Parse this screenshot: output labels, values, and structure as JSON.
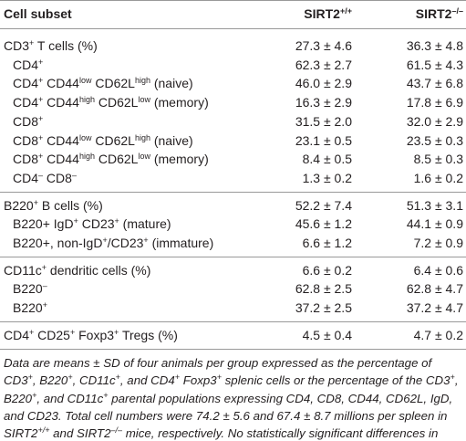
{
  "header": {
    "label": "Cell subset",
    "wt": [
      "SIRT2",
      {
        "sup": "+/+"
      }
    ],
    "ko": [
      "SIRT2",
      {
        "sup": "–/–"
      }
    ]
  },
  "groups": [
    {
      "rows": [
        {
          "label": [
            "CD3",
            {
              "sup": "+"
            },
            " T cells (%)"
          ],
          "wt": "27.3 ± 4.6",
          "ko": "36.3 ± 4.8"
        },
        {
          "label": [
            "CD4",
            {
              "sup": "+"
            }
          ],
          "wt": "62.3 ± 2.7",
          "ko": "61.5 ± 4.3"
        },
        {
          "label": [
            "CD4",
            {
              "sup": "+"
            },
            " CD44",
            {
              "sup": "low"
            },
            " CD62L",
            {
              "sup": "high"
            },
            " (naive)"
          ],
          "wt": "46.0 ± 2.9",
          "ko": "43.7 ± 6.8"
        },
        {
          "label": [
            "CD4",
            {
              "sup": "+"
            },
            " CD44",
            {
              "sup": "high"
            },
            " CD62L",
            {
              "sup": "low"
            },
            " (memory)"
          ],
          "wt": "16.3 ± 2.9",
          "ko": "17.8 ± 6.9"
        },
        {
          "label": [
            "CD8",
            {
              "sup": "+"
            }
          ],
          "wt": "31.5 ± 2.0",
          "ko": "32.0 ± 2.9"
        },
        {
          "label": [
            "CD8",
            {
              "sup": "+"
            },
            " CD44",
            {
              "sup": "low"
            },
            " CD62L",
            {
              "sup": "high"
            },
            " (naive)"
          ],
          "wt": "23.1 ± 0.5",
          "ko": "23.5 ± 0.3"
        },
        {
          "label": [
            "CD8",
            {
              "sup": "+"
            },
            " CD44",
            {
              "sup": "high"
            },
            " CD62L",
            {
              "sup": "low"
            },
            " (memory)"
          ],
          "wt": "8.4 ± 0.5",
          "ko": "8.5 ± 0.3"
        },
        {
          "label": [
            "CD4",
            {
              "sup": "–"
            },
            " CD8",
            {
              "sup": "–"
            }
          ],
          "wt": "1.3 ± 0.2",
          "ko": "1.6 ± 0.2"
        }
      ]
    },
    {
      "rows": [
        {
          "label": [
            "B220",
            {
              "sup": "+"
            },
            " B cells (%)"
          ],
          "wt": "52.2 ± 7.4",
          "ko": "51.3 ± 3.1"
        },
        {
          "label": [
            "B220+ IgD",
            {
              "sup": "+"
            },
            " CD23",
            {
              "sup": "+"
            },
            " (mature)"
          ],
          "wt": "45.6 ± 1.2",
          "ko": "44.1 ± 0.9"
        },
        {
          "label": [
            "B220+, non-IgD",
            {
              "sup": "+"
            },
            "/CD23",
            {
              "sup": "+"
            },
            " (immature)"
          ],
          "wt": "6.6 ± 1.2",
          "ko": "7.2 ± 0.9"
        }
      ]
    },
    {
      "rows": [
        {
          "label": [
            "CD11c",
            {
              "sup": "+"
            },
            " dendritic cells (%)"
          ],
          "wt": "6.6 ± 0.2",
          "ko": "6.4 ± 0.6"
        },
        {
          "label": [
            "B220",
            {
              "sup": "–"
            }
          ],
          "wt": "62.8 ± 2.5",
          "ko": "62.8 ± 4.7"
        },
        {
          "label": [
            "B220",
            {
              "sup": "+"
            }
          ],
          "wt": "37.2 ± 2.5",
          "ko": "37.2 ± 4.7"
        }
      ]
    },
    {
      "rows": [
        {
          "label": [
            "CD4",
            {
              "sup": "+"
            },
            " CD25",
            {
              "sup": "+"
            },
            " Foxp3",
            {
              "sup": "+"
            },
            " Tregs (%)"
          ],
          "wt": "4.5 ± 0.4",
          "ko": "4.7 ± 0.2"
        }
      ]
    }
  ],
  "footnote": [
    "Data are means ± SD of four animals per group expressed as the percentage of CD3",
    {
      "sup": "+"
    },
    ", B220",
    {
      "sup": "+"
    },
    ", CD11c",
    {
      "sup": "+"
    },
    ", and CD4",
    {
      "sup": "+"
    },
    " Foxp3",
    {
      "sup": "+"
    },
    " splenic cells or the percentage of the CD3",
    {
      "sup": "+"
    },
    ", B220",
    {
      "sup": "+"
    },
    ", and CD11c",
    {
      "sup": "+"
    },
    " parental populations expressing CD4, CD8, CD44, CD62L, IgD, and CD23. Total cell numbers were 74.2 ± 5.6 and 67.4 ± 8.7 millions per spleen in SIRT2",
    {
      "sup": "+/+"
    },
    " and SIRT2",
    {
      "sup": "–/–"
    },
    " mice, respectively. No statistically significant differences in subset percentages or absolute numbers were detected."
  ]
}
